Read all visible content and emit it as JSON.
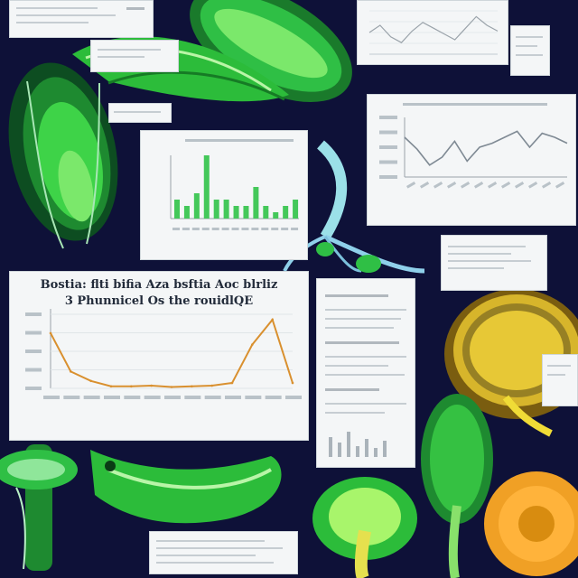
{
  "main_chart": {
    "title_line1": "Bostia: flti bifia  Aza bsftia  Aoc blrliz",
    "title_line2": "3 Phunnicel  Os  the rouidlQE",
    "x": [
      0,
      1,
      2,
      3,
      4,
      5,
      6,
      7,
      8,
      9,
      10,
      11,
      12
    ],
    "y": [
      8.2,
      2.5,
      1.1,
      0.3,
      0.3,
      0.4,
      0.2,
      0.3,
      0.4,
      0.8,
      6.5,
      10.2,
      0.8
    ]
  },
  "mid_bar_chart": {
    "values": [
      3,
      2,
      4,
      10,
      3,
      3,
      2,
      2,
      5,
      2,
      1,
      2,
      3
    ]
  },
  "top_right_line_chart": {
    "values": [
      55,
      60,
      52,
      48,
      56,
      62,
      58,
      54,
      50,
      58,
      66,
      60,
      56
    ]
  },
  "right_line_chart": {
    "values": [
      60,
      54,
      46,
      50,
      58,
      48,
      55,
      57,
      60,
      63,
      55,
      62,
      60,
      57
    ]
  }
}
